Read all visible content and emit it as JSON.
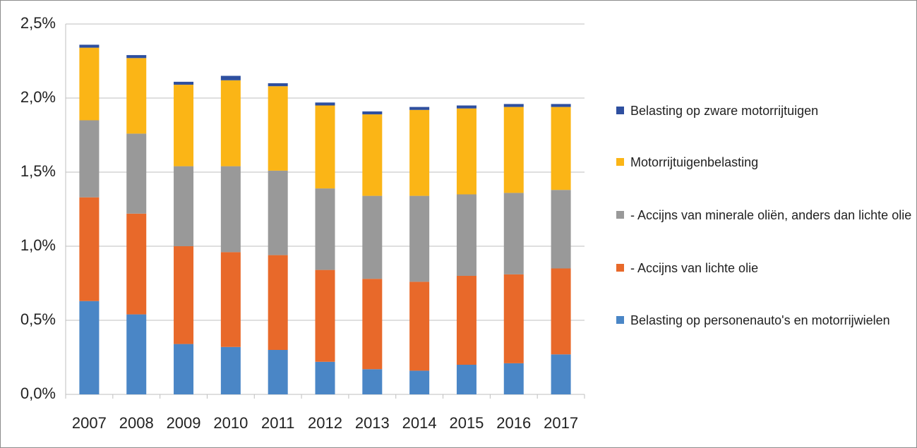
{
  "chart_data": {
    "type": "stacked-bar",
    "categories": [
      "2007",
      "2008",
      "2009",
      "2010",
      "2011",
      "2012",
      "2013",
      "2014",
      "2015",
      "2016",
      "2017"
    ],
    "series": [
      {
        "name": "Belasting op personenauto's en motorrijwielen",
        "color": "#4a86c6",
        "values": [
          0.63,
          0.54,
          0.34,
          0.32,
          0.3,
          0.22,
          0.17,
          0.16,
          0.2,
          0.21,
          0.27
        ]
      },
      {
        "name": "- Accijns van lichte olie",
        "color": "#e8692a",
        "values": [
          0.7,
          0.68,
          0.66,
          0.64,
          0.64,
          0.62,
          0.61,
          0.6,
          0.6,
          0.6,
          0.58
        ]
      },
      {
        "name": "- Accijns van minerale oliën, anders dan lichte olie",
        "color": "#999999",
        "values": [
          0.52,
          0.54,
          0.54,
          0.58,
          0.57,
          0.55,
          0.56,
          0.58,
          0.55,
          0.55,
          0.53
        ]
      },
      {
        "name": "Motorrijtuigenbelasting",
        "color": "#fbb516",
        "values": [
          0.49,
          0.51,
          0.55,
          0.58,
          0.57,
          0.56,
          0.55,
          0.58,
          0.58,
          0.58,
          0.56
        ]
      },
      {
        "name": "Belasting op zware motorrijtuigen",
        "color": "#2e4f9f",
        "values": [
          0.02,
          0.02,
          0.02,
          0.03,
          0.02,
          0.02,
          0.02,
          0.02,
          0.02,
          0.02,
          0.02
        ]
      }
    ],
    "ylim": [
      0,
      2.5
    ],
    "yticks": [
      {
        "value": 0,
        "label": "0,0%"
      },
      {
        "value": 0.5,
        "label": "0,5%"
      },
      {
        "value": 1,
        "label": "1,0%"
      },
      {
        "value": 1.5,
        "label": "1,5%"
      },
      {
        "value": 2,
        "label": "2,0%"
      },
      {
        "value": 2.5,
        "label": "2,5%"
      }
    ],
    "grid": true,
    "legend": "right"
  }
}
